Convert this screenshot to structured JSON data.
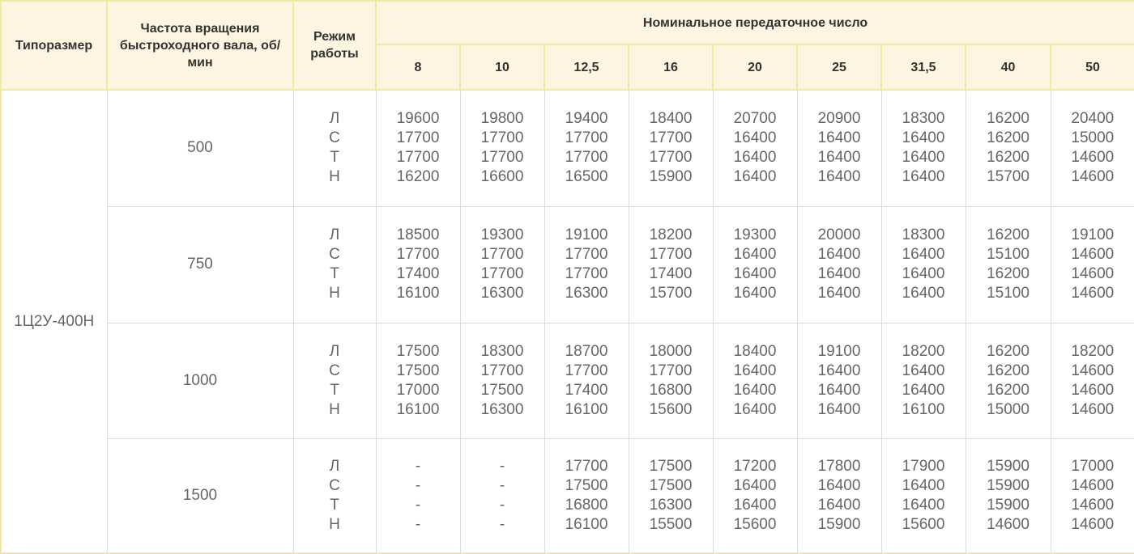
{
  "header": {
    "size": "Типоразмер",
    "speed": "Частота вращения быстроходного вала, об/мин",
    "mode": "Режим работы",
    "ratio": "Номинальное передаточное число",
    "ratios": [
      "8",
      "10",
      "12,5",
      "16",
      "20",
      "25",
      "31,5",
      "40",
      "50"
    ]
  },
  "size_value": "1Ц2У-400Н",
  "modes": [
    "Л",
    "С",
    "Т",
    "Н"
  ],
  "rows": [
    {
      "speed": "500",
      "values": [
        [
          "19600",
          "17700",
          "17700",
          "16200"
        ],
        [
          "19800",
          "17700",
          "17700",
          "16600"
        ],
        [
          "19400",
          "17700",
          "17700",
          "16500"
        ],
        [
          "18400",
          "17700",
          "17700",
          "15900"
        ],
        [
          "20700",
          "16400",
          "16400",
          "16400"
        ],
        [
          "20900",
          "16400",
          "16400",
          "16400"
        ],
        [
          "18300",
          "16400",
          "16400",
          "16400"
        ],
        [
          "16200",
          "16200",
          "16200",
          "15700"
        ],
        [
          "20400",
          "15000",
          "14600",
          "14600"
        ]
      ]
    },
    {
      "speed": "750",
      "values": [
        [
          "18500",
          "17700",
          "17400",
          "16100"
        ],
        [
          "19300",
          "17700",
          "17700",
          "16300"
        ],
        [
          "19100",
          "17700",
          "17700",
          "16300"
        ],
        [
          "18200",
          "17700",
          "17400",
          "15700"
        ],
        [
          "19300",
          "16400",
          "16400",
          "16400"
        ],
        [
          "20000",
          "16400",
          "16400",
          "16400"
        ],
        [
          "18300",
          "16400",
          "16400",
          "16400"
        ],
        [
          "16200",
          "15100",
          "16200",
          "15100"
        ],
        [
          "19100",
          "14600",
          "14600",
          "14600"
        ]
      ]
    },
    {
      "speed": "1000",
      "values": [
        [
          "17500",
          "17500",
          "17000",
          "16100"
        ],
        [
          "18300",
          "17700",
          "17500",
          "16300"
        ],
        [
          "18700",
          "17700",
          "17400",
          "16100"
        ],
        [
          "18000",
          "17700",
          "16800",
          "15600"
        ],
        [
          "18400",
          "16400",
          "16400",
          "16400"
        ],
        [
          "19100",
          "16400",
          "16400",
          "16400"
        ],
        [
          "18200",
          "16400",
          "16400",
          "16100"
        ],
        [
          "16200",
          "16200",
          "16200",
          "15000"
        ],
        [
          "18200",
          "14600",
          "14600",
          "14600"
        ]
      ]
    },
    {
      "speed": "1500",
      "values": [
        [
          "-",
          "-",
          "-",
          "-"
        ],
        [
          "-",
          "-",
          "-",
          "-"
        ],
        [
          "17700",
          "17500",
          "16800",
          "16100"
        ],
        [
          "17500",
          "17500",
          "16300",
          "15500"
        ],
        [
          "17200",
          "16400",
          "16400",
          "15600"
        ],
        [
          "17800",
          "16400",
          "16400",
          "15900"
        ],
        [
          "17900",
          "16400",
          "16400",
          "15600"
        ],
        [
          "15900",
          "15900",
          "15900",
          "14600"
        ],
        [
          "17000",
          "14600",
          "14600",
          "14600"
        ]
      ]
    }
  ],
  "colors": {
    "header_bg": "#fdf5e1",
    "header_border": "#f4e7a0",
    "grid": "#dcdcdc",
    "text": "#666666"
  }
}
